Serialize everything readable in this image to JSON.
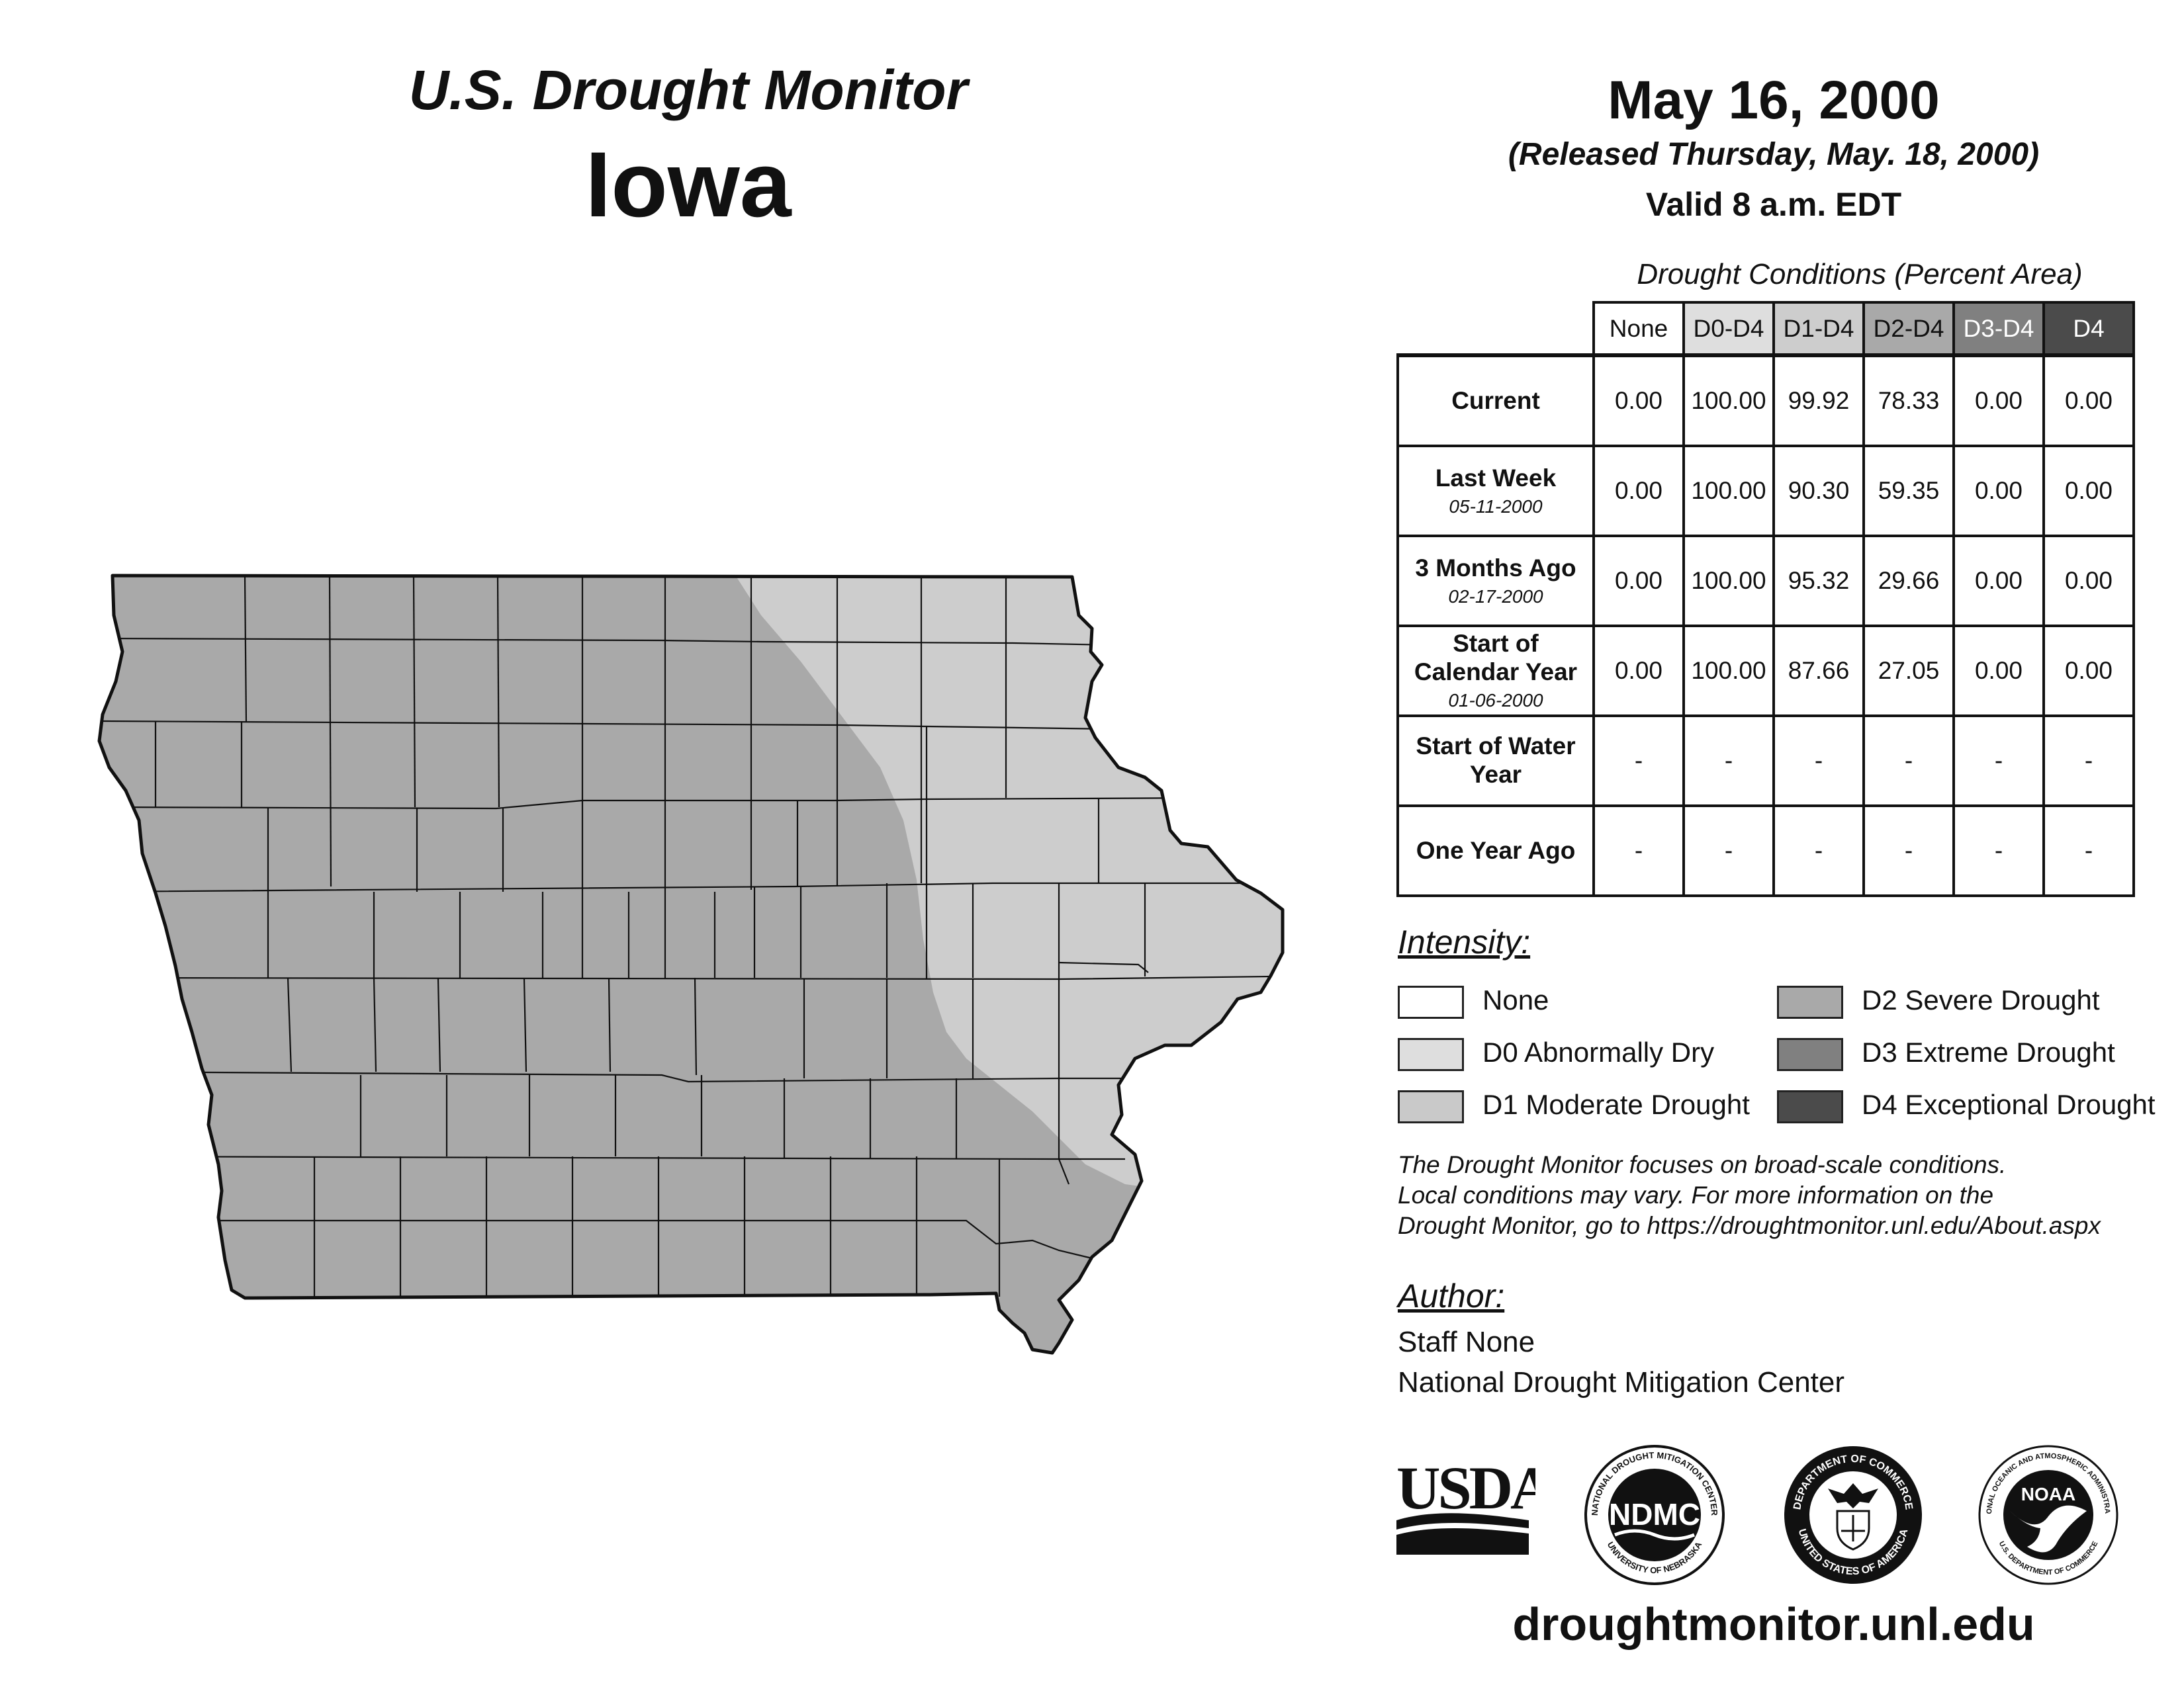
{
  "header": {
    "title": "U.S. Drought Monitor",
    "state": "Iowa",
    "date": "May 16, 2000",
    "released": "(Released Thursday, May. 18, 2000)",
    "valid": "Valid 8 a.m. EDT"
  },
  "table": {
    "caption": "Drought Conditions (Percent Area)",
    "columns": [
      "None",
      "D0-D4",
      "D1-D4",
      "D2-D4",
      "D3-D4",
      "D4"
    ],
    "column_colors": [
      "#ffffff",
      "#dedede",
      "#cdcdcd",
      "#a9a9a9",
      "#808080",
      "#4b4b4b"
    ],
    "rows": [
      {
        "label": "Current",
        "date": "",
        "values": [
          "0.00",
          "100.00",
          "99.92",
          "78.33",
          "0.00",
          "0.00"
        ]
      },
      {
        "label": "Last Week",
        "date": "05-11-2000",
        "values": [
          "0.00",
          "100.00",
          "90.30",
          "59.35",
          "0.00",
          "0.00"
        ]
      },
      {
        "label": "3 Months Ago",
        "date": "02-17-2000",
        "values": [
          "0.00",
          "100.00",
          "95.32",
          "29.66",
          "0.00",
          "0.00"
        ]
      },
      {
        "label": "Start of Calendar Year",
        "date": "01-06-2000",
        "values": [
          "0.00",
          "100.00",
          "87.66",
          "27.05",
          "0.00",
          "0.00"
        ]
      },
      {
        "label": "Start of Water Year",
        "date": "",
        "values": [
          "-",
          "-",
          "-",
          "-",
          "-",
          "-"
        ]
      },
      {
        "label": "One Year Ago",
        "date": "",
        "values": [
          "-",
          "-",
          "-",
          "-",
          "-",
          "-"
        ]
      }
    ]
  },
  "legend": {
    "heading": "Intensity:",
    "items": [
      {
        "label": "None",
        "color": "#ffffff"
      },
      {
        "label": "D0 Abnormally Dry",
        "color": "#dedede"
      },
      {
        "label": "D1 Moderate Drought",
        "color": "#c9c9c9"
      },
      {
        "label": "D2 Severe Drought",
        "color": "#a9a9a9"
      },
      {
        "label": "D3 Extreme Drought",
        "color": "#808080"
      },
      {
        "label": "D4 Exceptional Drought",
        "color": "#4b4b4b"
      }
    ]
  },
  "disclaimer": [
    "The Drought Monitor focuses on broad-scale conditions.",
    "Local conditions may vary. For more information on the",
    "Drought Monitor, go to https://droughtmonitor.unl.edu/About.aspx"
  ],
  "author": {
    "heading": "Author:",
    "name": "Staff None",
    "org": "National Drought Mitigation Center"
  },
  "logos": {
    "usda": "USDA",
    "ndmc": "NDMC",
    "ndmc_ring_top": "NATIONAL DROUGHT MITIGATION CENTER",
    "ndmc_ring_bottom": "UNIVERSITY OF NEBRASKA",
    "doc_ring_top": "DEPARTMENT OF COMMERCE",
    "doc_ring_bottom": "UNITED STATES OF AMERICA",
    "noaa": "NOAA",
    "noaa_ring_top": "NATIONAL OCEANIC AND ATMOSPHERIC ADMINISTRATION",
    "noaa_ring_bottom": "U.S. DEPARTMENT OF COMMERCE"
  },
  "website": "droughtmonitor.unl.edu",
  "map": {
    "region": "Iowa",
    "category_colors": {
      "D1": "#cdcdcd",
      "D2": "#a9a9a9"
    }
  }
}
